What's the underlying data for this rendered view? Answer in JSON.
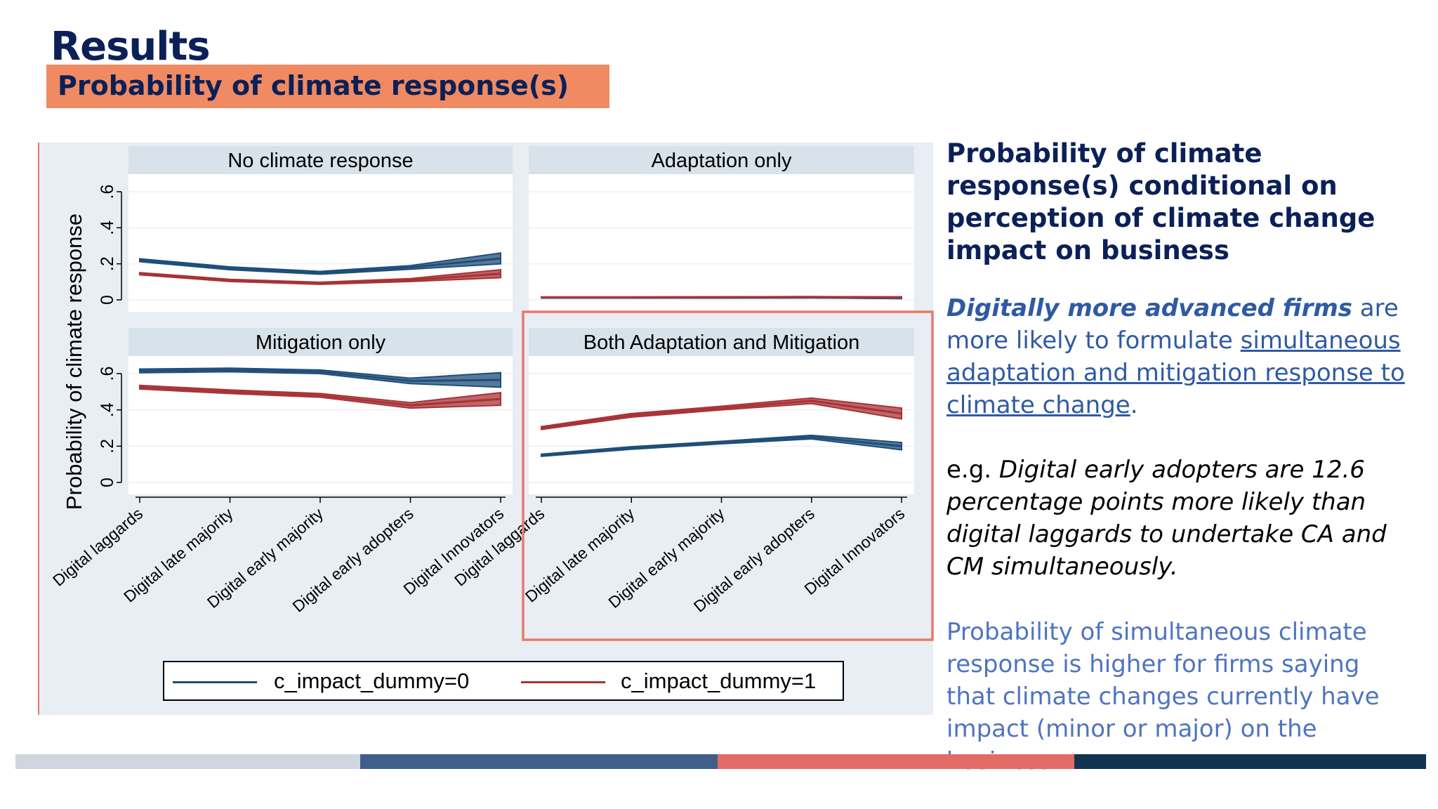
{
  "header": {
    "title": "Results",
    "subtitle": "Probability of climate response(s)"
  },
  "chart_data": {
    "type": "line",
    "ylabel": "Probability of climate response",
    "y_ticks": [
      "0",
      ".2",
      ".4",
      ".6"
    ],
    "ylim": [
      0,
      0.7
    ],
    "categories": [
      "Digital laggards",
      "Digital late majority",
      "Digital early majority",
      "Digital early adopters",
      "Digital Innovators"
    ],
    "legend_entries": [
      "c_impact_dummy=0",
      "c_impact_dummy=1"
    ],
    "series_colors": [
      "#1f4e79",
      "#a83236"
    ],
    "legend_position": "bottom",
    "highlighted_panel": "Both Adaptation and Mitigation",
    "panels": [
      {
        "title": "No climate response",
        "series": [
          {
            "legend": "c_impact_dummy=0",
            "values": [
              0.22,
              0.175,
              0.15,
              0.18,
              0.23
            ],
            "ci_halfwidth": [
              0.008,
              0.008,
              0.008,
              0.01,
              0.03
            ]
          },
          {
            "legend": "c_impact_dummy=1",
            "values": [
              0.145,
              0.108,
              0.092,
              0.11,
              0.145
            ],
            "ci_halfwidth": [
              0.006,
              0.006,
              0.006,
              0.008,
              0.022
            ]
          }
        ]
      },
      {
        "title": "Adaptation only",
        "series": [
          {
            "legend": "c_impact_dummy=0",
            "values": [
              0.012,
              0.012,
              0.012,
              0.013,
              0.01
            ],
            "ci_halfwidth": [
              0.002,
              0.002,
              0.002,
              0.002,
              0.003
            ]
          },
          {
            "legend": "c_impact_dummy=1",
            "values": [
              0.014,
              0.014,
              0.015,
              0.016,
              0.014
            ],
            "ci_halfwidth": [
              0.002,
              0.002,
              0.002,
              0.002,
              0.003
            ]
          }
        ]
      },
      {
        "title": "Mitigation only",
        "series": [
          {
            "legend": "c_impact_dummy=0",
            "values": [
              0.615,
              0.62,
              0.61,
              0.56,
              0.565
            ],
            "ci_halfwidth": [
              0.01,
              0.01,
              0.01,
              0.015,
              0.04
            ]
          },
          {
            "legend": "c_impact_dummy=1",
            "values": [
              0.525,
              0.5,
              0.48,
              0.425,
              0.46
            ],
            "ci_halfwidth": [
              0.01,
              0.01,
              0.01,
              0.015,
              0.035
            ]
          }
        ]
      },
      {
        "title": "Both Adaptation and Mitigation",
        "series": [
          {
            "legend": "c_impact_dummy=0",
            "values": [
              0.15,
              0.19,
              0.22,
              0.25,
              0.2
            ],
            "ci_halfwidth": [
              0.006,
              0.007,
              0.007,
              0.01,
              0.02
            ]
          },
          {
            "legend": "c_impact_dummy=1",
            "values": [
              0.3,
              0.37,
              0.41,
              0.45,
              0.38
            ],
            "ci_halfwidth": [
              0.008,
              0.01,
              0.01,
              0.015,
              0.03
            ]
          }
        ]
      }
    ]
  },
  "side": {
    "title": "Probability of climate response(s) conditional on perception of climate change impact on business",
    "p1_em": "Digitally more advanced firms",
    "p1_mid": " are more likely to formulate ",
    "p1_u": "simultaneous adaptation and mitigation response to climate change",
    "p1_end": ".",
    "p2_prefix": "e.g.",
    "p2_rest": " Digital early adopters are 12.6 percentage points more likely than digital laggards to undertake CA and CM simultaneously.",
    "p3": "Probability of simultaneous climate response is higher for firms saying that climate changes currently have impact (minor or major) on the business."
  },
  "footer": {
    "stripe_colors": [
      "#d0d6df",
      "#3f5f8a",
      "#e56b66",
      "#12334f"
    ]
  }
}
